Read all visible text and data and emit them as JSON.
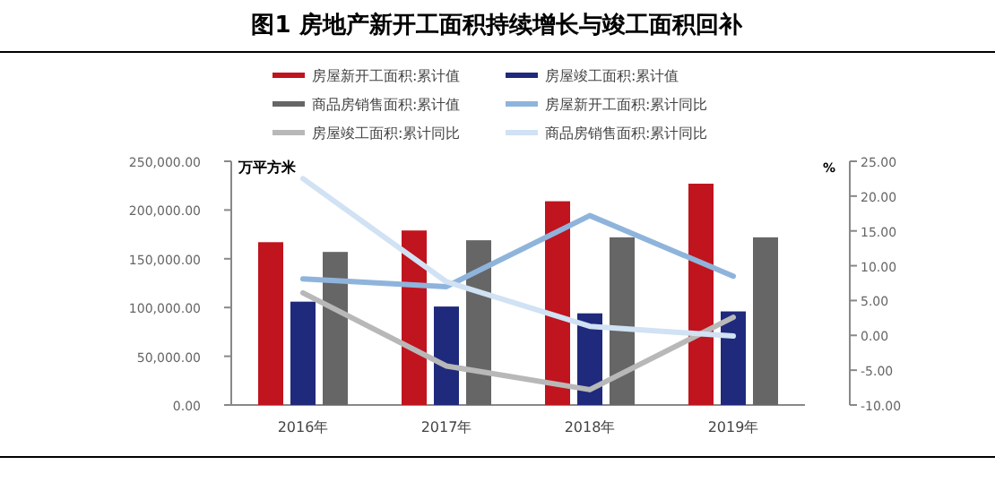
{
  "chart_data": {
    "type": "bar",
    "title": "图1 房地产新开工面积持续增长与竣工面积回补",
    "ylabel": "万平方米",
    "y2label": "%",
    "categories": [
      "2016年",
      "2017年",
      "2018年",
      "2019年"
    ],
    "series": [
      {
        "name": "房屋新开工面积:累计值",
        "color": "#c0141f",
        "values": [
          167000,
          179000,
          209000,
          227000
        ]
      },
      {
        "name": "房屋竣工面积:累计值",
        "color": "#1f2a7c",
        "values": [
          106000,
          101000,
          94000,
          96000
        ]
      },
      {
        "name": "商品房销售面积:累计值",
        "color": "#666666",
        "values": [
          157000,
          169000,
          172000,
          172000
        ]
      },
      {
        "name": "房屋新开工面积:累计同比",
        "type": "line",
        "axis": "y2",
        "color": "#8fb4dc",
        "values": [
          8.1,
          7.0,
          17.2,
          8.5
        ]
      },
      {
        "name": "房屋竣工面积:累计同比",
        "type": "line",
        "axis": "y2",
        "color": "#b8b8b8",
        "values": [
          6.1,
          -4.4,
          -7.8,
          2.6
        ]
      },
      {
        "name": "商品房销售面积:累计同比",
        "type": "line",
        "axis": "y2",
        "color": "#d0e2f3",
        "values": [
          22.5,
          7.7,
          1.3,
          -0.1
        ]
      }
    ],
    "ylim": [
      0,
      250000
    ],
    "yticks": [
      {
        "value": 0,
        "label": "0.00"
      },
      {
        "value": 50000,
        "label": "50,000.00"
      },
      {
        "value": 100000,
        "label": "100,000.00"
      },
      {
        "value": 150000,
        "label": "150,000.00"
      },
      {
        "value": 200000,
        "label": "200,000.00"
      },
      {
        "value": 250000,
        "label": "250,000.00"
      }
    ],
    "y2lim": [
      -10,
      25
    ],
    "y2ticks": [
      {
        "value": -10,
        "label": "-10.00"
      },
      {
        "value": -5,
        "label": "-5.00"
      },
      {
        "value": 0,
        "label": "0.00"
      },
      {
        "value": 5,
        "label": "5.00"
      },
      {
        "value": 10,
        "label": "10.00"
      },
      {
        "value": 15,
        "label": "15.00"
      },
      {
        "value": 20,
        "label": "20.00"
      },
      {
        "value": 25,
        "label": "25.00"
      }
    ],
    "legend": "top",
    "marker": "none",
    "line_style": "solid"
  }
}
